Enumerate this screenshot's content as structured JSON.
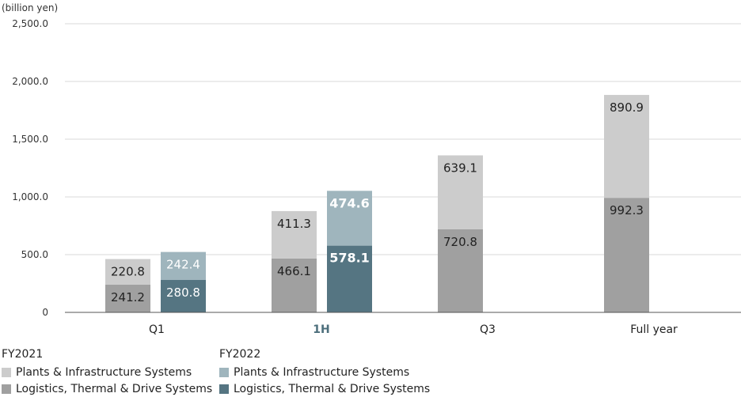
{
  "chart_data": {
    "type": "bar",
    "stacked": true,
    "unit_label": "(billion yen)",
    "ylim": [
      0,
      2500
    ],
    "yticks": [
      "0",
      "500.0",
      "1,000.0",
      "1,500.0",
      "2,000.0",
      "2,500.0"
    ],
    "ytick_values": [
      0,
      500,
      1000,
      1500,
      2000,
      2500
    ],
    "grid": true,
    "categories": [
      "Q1",
      "1H",
      "Q3",
      "Full year"
    ],
    "highlight_category": "1H",
    "series": [
      {
        "group": "FY2021",
        "name": "Logistics, Thermal & Drive Systems",
        "values": [
          241.2,
          466.1,
          720.8,
          992.3
        ],
        "labels": [
          "241.2",
          "466.1",
          "720.8",
          "992.3"
        ],
        "color": "#a0a0a0"
      },
      {
        "group": "FY2021",
        "name": "Plants & Infrastructure Systems",
        "values": [
          220.8,
          411.3,
          639.1,
          890.9
        ],
        "labels": [
          "220.8",
          "411.3",
          "639.1",
          "890.9"
        ],
        "color": "#cccccc"
      },
      {
        "group": "FY2022",
        "name": "Logistics, Thermal & Drive Systems",
        "values": [
          280.8,
          578.1,
          null,
          null
        ],
        "labels": [
          "280.8",
          "578.1",
          "",
          ""
        ],
        "color": "#557582"
      },
      {
        "group": "FY2022",
        "name": "Plants & Infrastructure Systems",
        "values": [
          242.4,
          474.6,
          null,
          null
        ],
        "labels": [
          "242.4",
          "474.6",
          "",
          ""
        ],
        "color": "#9fb5bd"
      }
    ],
    "legend": [
      {
        "title": "FY2021",
        "items": [
          {
            "name": "Plants & Infrastructure Systems",
            "color": "#cccccc"
          },
          {
            "name": "Logistics, Thermal & Drive Systems",
            "color": "#a0a0a0"
          }
        ]
      },
      {
        "title": "FY2022",
        "items": [
          {
            "name": "Plants & Infrastructure Systems",
            "color": "#9fb5bd"
          },
          {
            "name": "Logistics, Thermal & Drive Systems",
            "color": "#557582"
          }
        ]
      }
    ]
  }
}
